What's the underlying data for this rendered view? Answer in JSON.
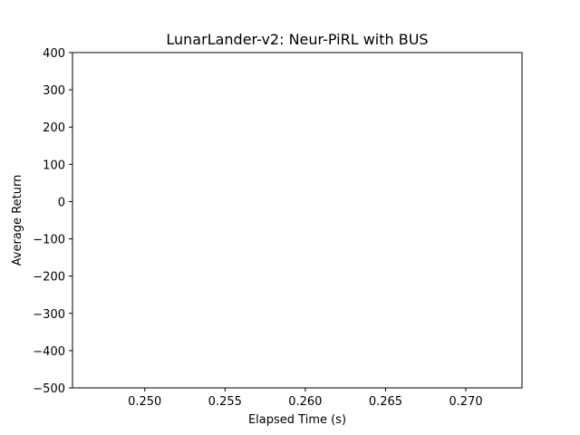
{
  "chart_data": {
    "type": "line",
    "title": "LunarLander-v2: Neur-PiRL with BUS",
    "xlabel": "Elapsed Time (s)",
    "ylabel": "Average Return",
    "xlim": [
      0.2455,
      0.2735
    ],
    "ylim": [
      -500,
      400
    ],
    "xticks": [
      0.25,
      0.255,
      0.26,
      0.265,
      0.27
    ],
    "xtick_labels": [
      "0.250",
      "0.255",
      "0.260",
      "0.265",
      "0.270"
    ],
    "yticks": [
      400,
      300,
      200,
      100,
      0,
      -100,
      -200,
      -300,
      -400,
      -500
    ],
    "ytick_labels": [
      "400",
      "300",
      "200",
      "100",
      "0",
      "−100",
      "−200",
      "−300",
      "−400",
      "−500"
    ],
    "grid": false,
    "series": []
  }
}
